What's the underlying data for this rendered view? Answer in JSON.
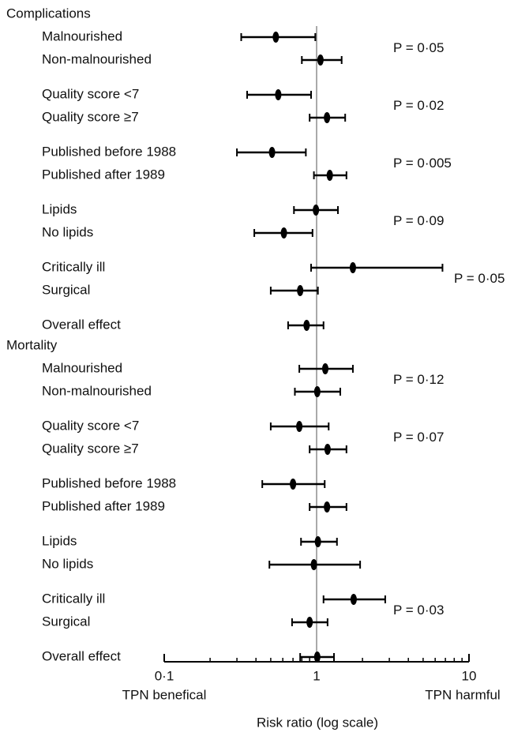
{
  "chart_data": {
    "type": "forest",
    "xlabel": "Risk ratio (log scale)",
    "left_note": "TPN benefical",
    "right_note": "TPN harmful",
    "log_x": true,
    "xlim": [
      0.1,
      10
    ],
    "xticks": [
      {
        "value": 0.1,
        "label": "0·1"
      },
      1,
      10
    ],
    "reference_line": 1,
    "color": "#000000",
    "sections": [
      {
        "name": "Complications",
        "groups": [
          {
            "rows": [
              {
                "label": "Malnourished",
                "value": 0.54,
                "lower": 0.32,
                "upper": 0.98
              },
              {
                "label": "Non-malnourished",
                "value": 1.06,
                "lower": 0.8,
                "upper": 1.46
              }
            ],
            "p": "P = 0·05"
          },
          {
            "rows": [
              {
                "label": "Quality score <7",
                "value": 0.56,
                "lower": 0.35,
                "upper": 0.92
              },
              {
                "label": "Quality score ≥7",
                "value": 1.17,
                "lower": 0.9,
                "upper": 1.54
              }
            ],
            "p": "P = 0·02"
          },
          {
            "rows": [
              {
                "label": "Published before 1988",
                "value": 0.51,
                "lower": 0.3,
                "upper": 0.85
              },
              {
                "label": "Published after 1989",
                "value": 1.22,
                "lower": 0.96,
                "upper": 1.57
              }
            ],
            "p": "P = 0·005"
          },
          {
            "rows": [
              {
                "label": "Lipids",
                "value": 0.99,
                "lower": 0.71,
                "upper": 1.38
              },
              {
                "label": "No lipids",
                "value": 0.61,
                "lower": 0.39,
                "upper": 0.94
              }
            ],
            "p": "P = 0·09"
          },
          {
            "rows": [
              {
                "label": "Critically ill",
                "value": 1.73,
                "lower": 0.92,
                "upper": 6.7
              },
              {
                "label": "Surgical",
                "value": 0.78,
                "lower": 0.5,
                "upper": 1.02
              }
            ],
            "p": "P = 0·05"
          },
          {
            "rows": [
              {
                "label": "Overall effect",
                "value": 0.86,
                "lower": 0.65,
                "upper": 1.11
              }
            ]
          }
        ]
      },
      {
        "name": "Mortality",
        "groups": [
          {
            "rows": [
              {
                "label": "Malnourished",
                "value": 1.14,
                "lower": 0.77,
                "upper": 1.73
              },
              {
                "label": "Non-malnourished",
                "value": 1.01,
                "lower": 0.72,
                "upper": 1.43
              }
            ],
            "p": "P = 0·12"
          },
          {
            "rows": [
              {
                "label": "Quality score <7",
                "value": 0.77,
                "lower": 0.5,
                "upper": 1.2
              },
              {
                "label": "Quality score ≥7",
                "value": 1.18,
                "lower": 0.9,
                "upper": 1.57
              }
            ],
            "p": "P = 0·07"
          },
          {
            "rows": [
              {
                "label": "Published before 1988",
                "value": 0.7,
                "lower": 0.44,
                "upper": 1.13
              },
              {
                "label": "Published after 1989",
                "value": 1.17,
                "lower": 0.9,
                "upper": 1.57
              }
            ]
          },
          {
            "rows": [
              {
                "label": "Lipids",
                "value": 1.02,
                "lower": 0.79,
                "upper": 1.36
              },
              {
                "label": "No lipids",
                "value": 0.96,
                "lower": 0.49,
                "upper": 1.93
              }
            ]
          },
          {
            "rows": [
              {
                "label": "Critically ill",
                "value": 1.75,
                "lower": 1.11,
                "upper": 2.82
              },
              {
                "label": "Surgical",
                "value": 0.9,
                "lower": 0.69,
                "upper": 1.18
              }
            ],
            "p": "P = 0·03"
          },
          {
            "rows": [
              {
                "label": "Overall effect",
                "value": 1.01,
                "lower": 0.78,
                "upper": 1.3
              }
            ]
          }
        ]
      }
    ]
  }
}
